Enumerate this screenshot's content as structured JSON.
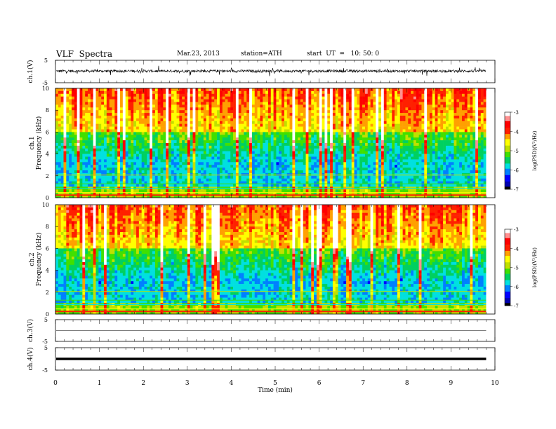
{
  "header": {
    "title": "VLF  Spectra",
    "date": "Mar.23, 2013",
    "station": "station=ATH",
    "start": "start  UT  =   10: 50: 0"
  },
  "chart_data": [
    {
      "type": "line",
      "panel": "ch1-waveform",
      "ylabel": "ch.1(V)",
      "ylim": [
        -5,
        5
      ],
      "ytick_labels": [
        "5",
        "-5"
      ],
      "xlim": [
        0,
        10
      ],
      "trace_span_min": 9.8,
      "baseline_v": 0.2,
      "noise_amplitude_v": 1.2
    },
    {
      "type": "heatmap",
      "panel": "ch1-spectrogram",
      "ylabel": [
        "ch.1",
        "Frequency  (kHz)"
      ],
      "ylim": [
        0,
        10
      ],
      "ytick_labels": [
        "0",
        "2",
        "4",
        "6",
        "8",
        "10"
      ],
      "xlim": [
        0,
        10
      ],
      "colorbar": {
        "label": "log(PSD)(V²/Hz)",
        "range": [
          -7,
          -3
        ],
        "tick_labels": [
          "-3",
          "-4",
          "-5",
          "-6",
          "-7"
        ]
      }
    },
    {
      "type": "heatmap",
      "panel": "ch2-spectrogram",
      "ylabel": [
        "ch.2",
        "Frequency  (kHz)"
      ],
      "ylim": [
        0,
        10
      ],
      "ytick_labels": [
        "0",
        "2",
        "4",
        "6",
        "8",
        "10"
      ],
      "xlim": [
        0,
        10
      ],
      "colorbar": {
        "label": "log(PSD)(V²/Hz)",
        "range": [
          -7,
          -3
        ],
        "tick_labels": [
          "-3",
          "-4",
          "-5",
          "-6",
          "-7"
        ]
      }
    },
    {
      "type": "line",
      "panel": "ch3-waveform",
      "ylabel": "ch.3(V)",
      "ylim": [
        -5,
        5
      ],
      "ytick_labels": [
        "5",
        "-5"
      ],
      "xlim": [
        0,
        10
      ],
      "trace_span_min": 9.8,
      "baseline_v": 0
    },
    {
      "type": "line",
      "panel": "ch4-waveform",
      "ylabel": "ch.4(V)",
      "ylim": [
        -5,
        5
      ],
      "ytick_labels": [
        "5",
        "-5"
      ],
      "xlim": [
        0,
        10
      ],
      "trace_span_min": 9.8,
      "baseline_v": 0
    }
  ],
  "x_axis": {
    "label": "Time  (min)",
    "tick_labels": [
      "0",
      "1",
      "2",
      "3",
      "4",
      "5",
      "6",
      "7",
      "8",
      "9",
      "10"
    ]
  },
  "colors": {
    "colormap": [
      "#000000",
      "#0000b0",
      "#0000ff",
      "#0080ff",
      "#00e0e0",
      "#00d060",
      "#40e000",
      "#c0e000",
      "#ffff00",
      "#ffa000",
      "#ff2000",
      "#ff0000",
      "#ff9090",
      "#ffffff"
    ]
  }
}
